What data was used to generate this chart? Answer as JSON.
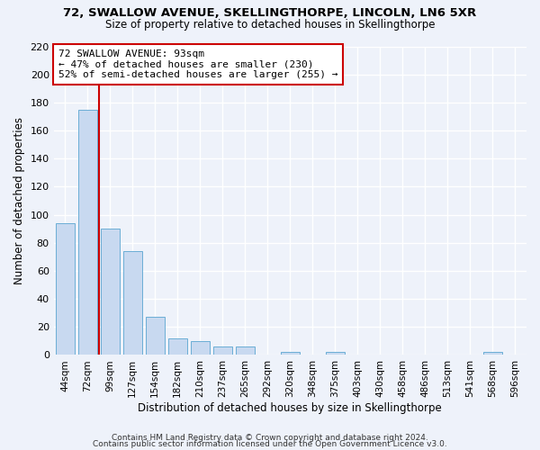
{
  "title": "72, SWALLOW AVENUE, SKELLINGTHORPE, LINCOLN, LN6 5XR",
  "subtitle": "Size of property relative to detached houses in Skellingthorpe",
  "xlabel": "Distribution of detached houses by size in Skellingthorpe",
  "ylabel": "Number of detached properties",
  "bar_labels": [
    "44sqm",
    "72sqm",
    "99sqm",
    "127sqm",
    "154sqm",
    "182sqm",
    "210sqm",
    "237sqm",
    "265sqm",
    "292sqm",
    "320sqm",
    "348sqm",
    "375sqm",
    "403sqm",
    "430sqm",
    "458sqm",
    "486sqm",
    "513sqm",
    "541sqm",
    "568sqm",
    "596sqm"
  ],
  "bar_values": [
    94,
    175,
    90,
    74,
    27,
    12,
    10,
    6,
    6,
    0,
    2,
    0,
    2,
    0,
    0,
    0,
    0,
    0,
    0,
    2,
    0
  ],
  "bar_color": "#c8d9f0",
  "bar_edge_color": "#6baed6",
  "property_line_color": "#cc0000",
  "annotation_line1": "72 SWALLOW AVENUE: 93sqm",
  "annotation_line2": "← 47% of detached houses are smaller (230)",
  "annotation_line3": "52% of semi-detached houses are larger (255) →",
  "annotation_box_color": "#ffffff",
  "annotation_box_edge": "#cc0000",
  "ylim": [
    0,
    220
  ],
  "yticks": [
    0,
    20,
    40,
    60,
    80,
    100,
    120,
    140,
    160,
    180,
    200,
    220
  ],
  "footer1": "Contains HM Land Registry data © Crown copyright and database right 2024.",
  "footer2": "Contains public sector information licensed under the Open Government Licence v3.0.",
  "background_color": "#eef2fa",
  "grid_color": "#ffffff"
}
